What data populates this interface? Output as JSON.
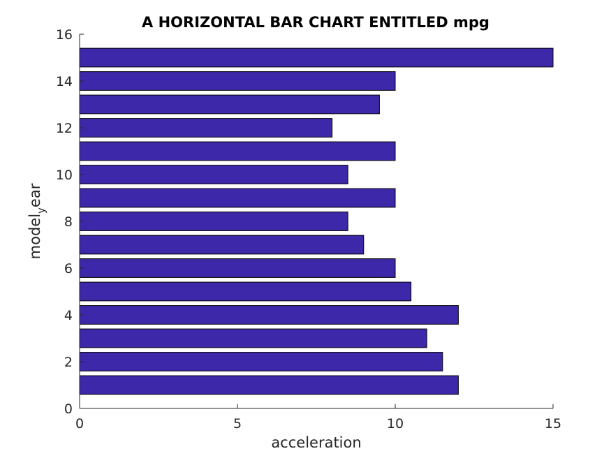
{
  "chart_data": {
    "type": "bar",
    "orientation": "horizontal",
    "title": "A HORIZONTAL BAR CHART ENTITLED mpg",
    "xlabel": "acceleration",
    "ylabel_main": "model",
    "ylabel_sub": "y",
    "ylabel_tail": "ear",
    "categories": [
      1,
      2,
      3,
      4,
      5,
      6,
      7,
      8,
      9,
      10,
      11,
      12,
      13,
      14,
      15
    ],
    "values": [
      12,
      11.5,
      11,
      12,
      10.5,
      10,
      9,
      8.5,
      10,
      8.5,
      10,
      8,
      9.5,
      10,
      15
    ],
    "xlim": [
      0,
      15
    ],
    "ylim": [
      0,
      16
    ],
    "xticks": [
      0,
      5,
      10,
      15
    ],
    "yticks": [
      0,
      2,
      4,
      6,
      8,
      10,
      12,
      14,
      16
    ],
    "bar_color": "#3c28a8",
    "grid": false,
    "legend": "none"
  }
}
